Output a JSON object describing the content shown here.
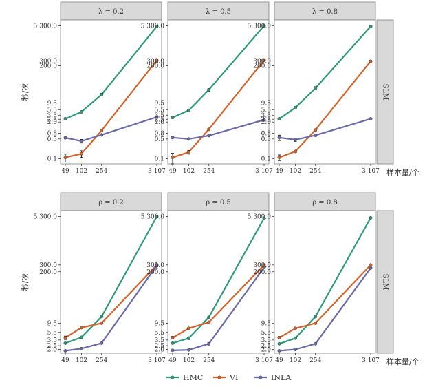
{
  "chart_data": {
    "type": "line",
    "x_label": "样本量/个",
    "y_label": "秒/次",
    "x_ticks": [
      49,
      102,
      254,
      3107
    ],
    "x_tick_labels": [
      "49",
      "102",
      "254",
      "3 107"
    ],
    "x_scale": "log",
    "y_scale": "log",
    "legend": {
      "placement": "bottom",
      "entries": [
        {
          "name": "HMC",
          "color": "#2e9a7a"
        },
        {
          "name": "VI",
          "color": "#d4622b"
        },
        {
          "name": "INLA",
          "color": "#6a6aa8"
        }
      ]
    },
    "rows": [
      {
        "facet_label": "SLM",
        "y_ticks": [
          0.1,
          0.5,
          0.8,
          2.0,
          2.5,
          3.5,
          5.5,
          9.5,
          200.0,
          300.0,
          5300.0
        ],
        "y_tick_labels": [
          "0.1",
          "0.5",
          "0.8",
          "2.0",
          "2.5",
          "3.5",
          "5.5",
          "9.5",
          "200.0",
          "300.0",
          "5 300.0"
        ],
        "ylim": [
          0.065,
          8500
        ],
        "panels": [
          {
            "title": "λ = 0.2",
            "series": [
              {
                "name": "HMC",
                "x": [
                  49,
                  102,
                  254,
                  3107
                ],
                "y": [
                  2.6,
                  4.6,
                  19.0,
                  5000.0
                ],
                "err": [
                  0.2,
                  0.3,
                  2.0,
                  150.0
                ]
              },
              {
                "name": "VI",
                "x": [
                  49,
                  102,
                  254,
                  3107
                ],
                "y": [
                  0.11,
                  0.15,
                  1.0,
                  310.0
                ],
                "err": [
                  0.035,
                  0.04,
                  0.08,
                  40.0
                ]
              },
              {
                "name": "INLA",
                "x": [
                  49,
                  102,
                  254,
                  3107
                ],
                "y": [
                  0.55,
                  0.42,
                  0.7,
                  3.0
                ],
                "err": [
                  0.04,
                  0.06,
                  0.05,
                  0.3
                ]
              }
            ]
          },
          {
            "title": "λ = 0.5",
            "series": [
              {
                "name": "HMC",
                "x": [
                  49,
                  102,
                  254,
                  3107
                ],
                "y": [
                  2.9,
                  5.2,
                  28.0,
                  5300.0
                ],
                "err": [
                  0.2,
                  0.3,
                  3.0,
                  150.0
                ]
              },
              {
                "name": "VI",
                "x": [
                  49,
                  102,
                  254,
                  3107
                ],
                "y": [
                  0.11,
                  0.17,
                  1.1,
                  320.0
                ],
                "err": [
                  0.045,
                  0.025,
                  0.08,
                  20.0
                ]
              },
              {
                "name": "INLA",
                "x": [
                  49,
                  102,
                  254,
                  3107
                ],
                "y": [
                  0.56,
                  0.5,
                  0.66,
                  2.4
                ],
                "err": [
                  0.03,
                  0.03,
                  0.04,
                  0.1
                ]
              }
            ]
          },
          {
            "title": "λ = 0.8",
            "series": [
              {
                "name": "HMC",
                "x": [
                  49,
                  102,
                  254,
                  3107
                ],
                "y": [
                  2.6,
                  6.5,
                  32.0,
                  5000.0
                ],
                "err": [
                  0.2,
                  0.5,
                  4.0,
                  150.0
                ]
              },
              {
                "name": "VI",
                "x": [
                  49,
                  102,
                  254,
                  3107
                ],
                "y": [
                  0.11,
                  0.18,
                  1.05,
                  290.0
                ],
                "err": [
                  0.025,
                  0.015,
                  0.08,
                  20.0
                ]
              },
              {
                "name": "INLA",
                "x": [
                  49,
                  102,
                  254,
                  3107
                ],
                "y": [
                  0.56,
                  0.47,
                  0.68,
                  2.6
                ],
                "err": [
                  0.12,
                  0.06,
                  0.06,
                  0.1
                ]
              }
            ]
          }
        ]
      },
      {
        "facet_label": "SLM",
        "y_ticks": [
          2.0,
          2.5,
          3.5,
          5.5,
          9.5,
          200.0,
          300.0,
          5300.0
        ],
        "y_tick_labels": [
          "2.0",
          "2.5",
          "3.5",
          "5.5",
          "9.5",
          "200.0",
          "300.0",
          "5 300.0"
        ],
        "ylim": [
          1.6,
          7500
        ],
        "panels": [
          {
            "title": "ρ = 0.2",
            "series": [
              {
                "name": "HMC",
                "x": [
                  49,
                  102,
                  254,
                  3107
                ],
                "y": [
                  2.9,
                  4.1,
                  14.0,
                  5300.0
                ],
                "err": [
                  0.1,
                  0.1,
                  0.5,
                  100.0
                ]
              },
              {
                "name": "VI",
                "x": [
                  49,
                  102,
                  254,
                  3107
                ],
                "y": [
                  4.0,
                  7.3,
                  9.5,
                  300.0
                ],
                "err": [
                  0.4,
                  0.3,
                  0.5,
                  60.0
                ]
              },
              {
                "name": "INLA",
                "x": [
                  49,
                  102,
                  254,
                  3107
                ],
                "y": [
                  1.85,
                  2.1,
                  2.9,
                  290.0
                ],
                "err": [
                  0.05,
                  0.05,
                  0.1,
                  20.0
                ]
              }
            ]
          },
          {
            "title": "ρ = 0.5",
            "series": [
              {
                "name": "HMC",
                "x": [
                  49,
                  102,
                  254,
                  3107
                ],
                "y": [
                  2.9,
                  3.9,
                  13.5,
                  4800.0
                ],
                "err": [
                  0.1,
                  0.3,
                  0.5,
                  100.0
                ]
              },
              {
                "name": "VI",
                "x": [
                  49,
                  102,
                  254,
                  3107
                ],
                "y": [
                  4.0,
                  7.0,
                  10.0,
                  300.0
                ],
                "err": [
                  0.3,
                  0.3,
                  0.4,
                  15.0
                ]
              },
              {
                "name": "INLA",
                "x": [
                  49,
                  102,
                  254,
                  3107
                ],
                "y": [
                  1.9,
                  1.95,
                  2.8,
                  260.0
                ],
                "err": [
                  0.05,
                  0.05,
                  0.2,
                  10.0
                ]
              }
            ]
          },
          {
            "title": "ρ = 0.8",
            "series": [
              {
                "name": "HMC",
                "x": [
                  49,
                  102,
                  254,
                  3107
                ],
                "y": [
                  2.8,
                  3.9,
                  14.0,
                  4900.0
                ],
                "err": [
                  0.1,
                  0.1,
                  0.5,
                  100.0
                ]
              },
              {
                "name": "VI",
                "x": [
                  49,
                  102,
                  254,
                  3107
                ],
                "y": [
                  4.0,
                  7.0,
                  9.5,
                  300.0
                ],
                "err": [
                  0.3,
                  0.3,
                  0.5,
                  15.0
                ]
              },
              {
                "name": "INLA",
                "x": [
                  49,
                  102,
                  254,
                  3107
                ],
                "y": [
                  1.85,
                  2.0,
                  2.8,
                  250.0
                ],
                "err": [
                  0.05,
                  0.05,
                  0.1,
                  10.0
                ]
              }
            ]
          }
        ]
      }
    ]
  }
}
